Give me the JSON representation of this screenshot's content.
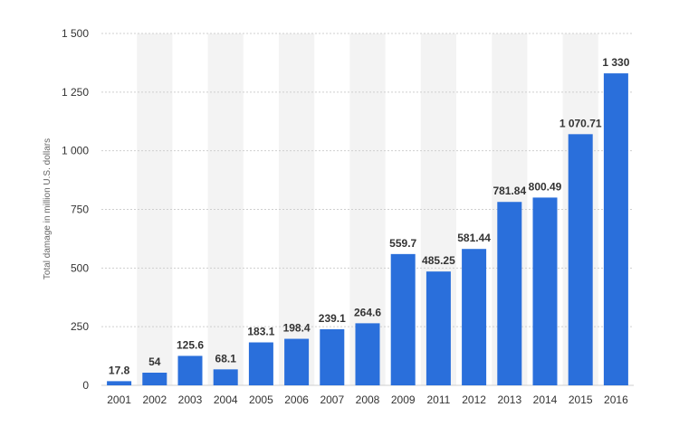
{
  "chart_data": {
    "type": "bar",
    "title": "",
    "xlabel": "",
    "ylabel": "Total damage in million U.S. dollars",
    "categories": [
      "2001",
      "2002",
      "2003",
      "2004",
      "2005",
      "2006",
      "2007",
      "2008",
      "2009",
      "2011",
      "2012",
      "2013",
      "2014",
      "2015",
      "2016"
    ],
    "values": [
      17.8,
      54,
      125.6,
      68.1,
      183.1,
      198.4,
      239.1,
      264.6,
      559.7,
      485.25,
      581.44,
      781.84,
      800.49,
      1070.71,
      1330
    ],
    "value_labels": [
      "17.8",
      "54",
      "125.6",
      "68.1",
      "183.1",
      "198.4",
      "239.1",
      "264.6",
      "559.7",
      "485.25",
      "581.44",
      "781.84",
      "800.49",
      "1 070.71",
      "1 330"
    ],
    "ylim": [
      0,
      1500
    ],
    "y_ticks": [
      0,
      250,
      500,
      750,
      1000,
      1250,
      1500
    ],
    "y_tick_labels": [
      "0",
      "250",
      "500",
      "750",
      "1 000",
      "1 250",
      "1 500"
    ],
    "grid": true,
    "legend": "none",
    "colors": {
      "bar": "#2a6fdb",
      "band": "#f3f3f3",
      "grid": "#cfcfcf"
    }
  }
}
